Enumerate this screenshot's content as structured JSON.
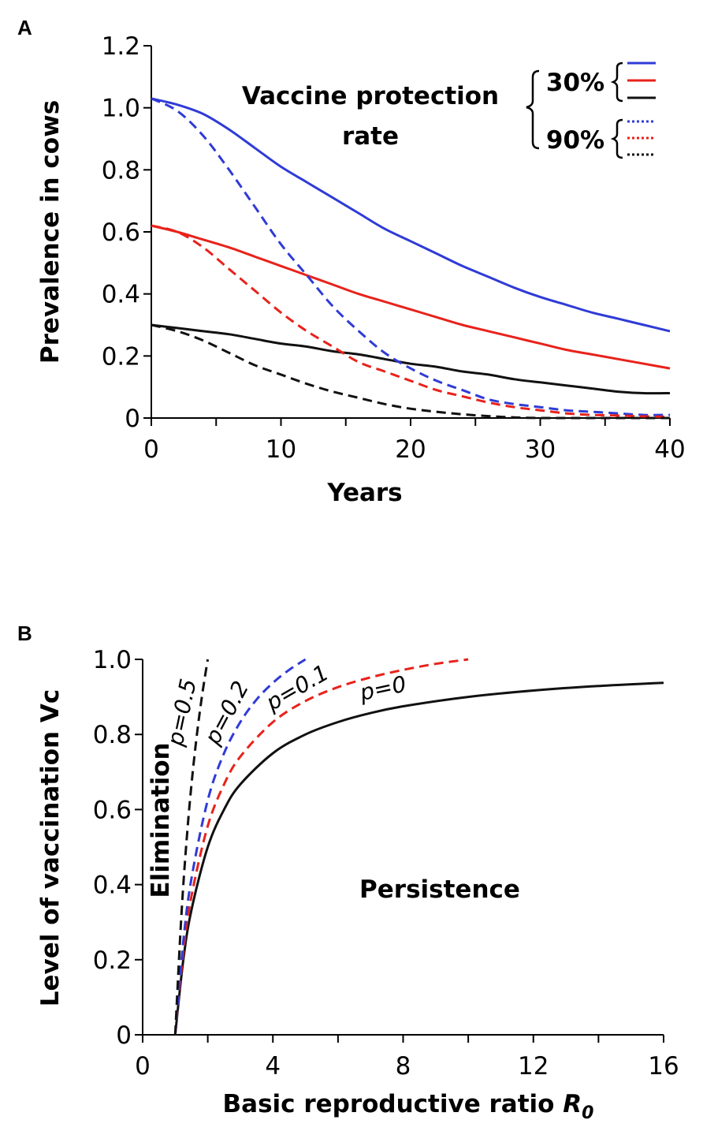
{
  "chart_data": [
    {
      "panel": "A",
      "type": "line",
      "xlabel": "Years",
      "ylabel": "Prevalence in cows",
      "xlim": [
        0,
        40
      ],
      "ylim": [
        0,
        1.2
      ],
      "x_ticks": [
        "0",
        "10",
        "20",
        "30",
        "40"
      ],
      "y_ticks": [
        "0",
        "0.2",
        "0.4",
        "0.6",
        "0.8",
        "1.0",
        "1.2"
      ],
      "x_tick_values": [
        0,
        10,
        20,
        30,
        40
      ],
      "y_tick_values": [
        0,
        0.2,
        0.4,
        0.6,
        0.8,
        1.0,
        1.2
      ],
      "annotation_line1": "Vaccine protection",
      "annotation_line2": "rate",
      "legend_groups": [
        "30%",
        "90%"
      ],
      "series": [
        {
          "name": "30% blue",
          "color": "#2f3bd6",
          "dash": "solid",
          "x": [
            0,
            2,
            4,
            6,
            8,
            10,
            12,
            14,
            16,
            18,
            20,
            22,
            24,
            26,
            28,
            30,
            32,
            34,
            36,
            38,
            40
          ],
          "y": [
            1.03,
            1.01,
            0.98,
            0.93,
            0.87,
            0.81,
            0.76,
            0.71,
            0.66,
            0.61,
            0.57,
            0.53,
            0.49,
            0.455,
            0.42,
            0.39,
            0.365,
            0.34,
            0.32,
            0.3,
            0.28
          ]
        },
        {
          "name": "30% red",
          "color": "#e8221b",
          "dash": "solid",
          "x": [
            0,
            2,
            4,
            6,
            8,
            10,
            12,
            14,
            16,
            18,
            20,
            22,
            24,
            26,
            28,
            30,
            32,
            34,
            36,
            38,
            40
          ],
          "y": [
            0.62,
            0.6,
            0.575,
            0.55,
            0.52,
            0.49,
            0.46,
            0.43,
            0.4,
            0.375,
            0.35,
            0.325,
            0.3,
            0.28,
            0.26,
            0.24,
            0.22,
            0.205,
            0.19,
            0.175,
            0.16
          ]
        },
        {
          "name": "30% black",
          "color": "#111111",
          "dash": "solid",
          "x": [
            0,
            2,
            4,
            6,
            8,
            10,
            12,
            14,
            16,
            18,
            20,
            22,
            24,
            26,
            28,
            30,
            32,
            34,
            36,
            38,
            40
          ],
          "y": [
            0.3,
            0.29,
            0.28,
            0.27,
            0.255,
            0.24,
            0.23,
            0.215,
            0.205,
            0.19,
            0.175,
            0.165,
            0.15,
            0.14,
            0.125,
            0.115,
            0.105,
            0.095,
            0.085,
            0.08,
            0.08
          ]
        },
        {
          "name": "90% blue",
          "color": "#2f3bd6",
          "dash": "dashed",
          "x": [
            0,
            2,
            4,
            6,
            8,
            10,
            12,
            14,
            16,
            18,
            20,
            22,
            24,
            26,
            28,
            30,
            32,
            34,
            36,
            38,
            40
          ],
          "y": [
            1.03,
            0.99,
            0.91,
            0.8,
            0.68,
            0.56,
            0.46,
            0.36,
            0.28,
            0.21,
            0.16,
            0.12,
            0.09,
            0.06,
            0.045,
            0.035,
            0.025,
            0.02,
            0.015,
            0.01,
            0.01
          ]
        },
        {
          "name": "90% red",
          "color": "#e8221b",
          "dash": "dashed",
          "x": [
            0,
            2,
            4,
            6,
            8,
            10,
            12,
            14,
            16,
            18,
            20,
            22,
            24,
            26,
            28,
            30,
            32,
            34,
            36,
            38,
            40
          ],
          "y": [
            0.62,
            0.6,
            0.55,
            0.48,
            0.41,
            0.34,
            0.28,
            0.23,
            0.18,
            0.15,
            0.12,
            0.09,
            0.07,
            0.05,
            0.035,
            0.025,
            0.015,
            0.01,
            0.008,
            0.005,
            0.004
          ]
        },
        {
          "name": "90% black",
          "color": "#111111",
          "dash": "dashed",
          "x": [
            0,
            2,
            4,
            6,
            8,
            10,
            12,
            14,
            16,
            18,
            20,
            22,
            24,
            26,
            28,
            30,
            32,
            34,
            36,
            38,
            40
          ],
          "y": [
            0.3,
            0.28,
            0.25,
            0.21,
            0.17,
            0.14,
            0.11,
            0.085,
            0.065,
            0.045,
            0.03,
            0.02,
            0.012,
            0.006,
            0.002,
            0.0,
            0.0,
            0.0,
            0.0,
            0.0,
            0.0
          ]
        }
      ]
    },
    {
      "panel": "B",
      "type": "line",
      "xlabel": "Basic reproductive ratio",
      "xlabel_symbol": "R",
      "xlabel_subscript": "0",
      "ylabel": "Level of vaccination Vc",
      "xlim": [
        0,
        16
      ],
      "ylim": [
        0,
        1.0
      ],
      "x_ticks": [
        "0",
        "4",
        "8",
        "12",
        "16"
      ],
      "y_ticks": [
        "0",
        "0.2",
        "0.4",
        "0.6",
        "0.8",
        "1.0"
      ],
      "x_tick_values": [
        0,
        4,
        8,
        12,
        16
      ],
      "y_tick_values": [
        0,
        0.2,
        0.4,
        0.6,
        0.8,
        1.0
      ],
      "region_labels": {
        "left": "Elimination",
        "right": "Persistence"
      },
      "series": [
        {
          "name": "p=0",
          "label": "p=0",
          "color": "#111111",
          "dash": "solid",
          "x": [
            1,
            1.25,
            1.5,
            2,
            2.5,
            3,
            4,
            5,
            6,
            7,
            8,
            10,
            12,
            14,
            16
          ],
          "y": [
            0,
            0.2,
            0.333,
            0.5,
            0.6,
            0.667,
            0.75,
            0.8,
            0.833,
            0.857,
            0.875,
            0.9,
            0.917,
            0.929,
            0.9375
          ]
        },
        {
          "name": "p=0.1",
          "label": "p=0.1",
          "color": "#e8221b",
          "dash": "dashed",
          "x": [
            1,
            1.25,
            1.5,
            2,
            2.5,
            3,
            4,
            5,
            6,
            7,
            8,
            9,
            10
          ],
          "y": [
            0,
            0.222,
            0.37,
            0.556,
            0.667,
            0.741,
            0.833,
            0.889,
            0.926,
            0.952,
            0.972,
            0.988,
            1.0
          ]
        },
        {
          "name": "p=0.2",
          "label": "p=0.2",
          "color": "#2f3bd6",
          "dash": "dashed",
          "x": [
            1,
            1.25,
            1.5,
            2,
            2.5,
            3,
            3.5,
            4,
            4.5,
            5
          ],
          "y": [
            0,
            0.25,
            0.417,
            0.625,
            0.75,
            0.833,
            0.893,
            0.9375,
            0.972,
            1.0
          ]
        },
        {
          "name": "p=0.5",
          "label": "p=0.5",
          "color": "#111111",
          "dash": "dashed",
          "x": [
            1,
            1.2,
            1.4,
            1.6,
            1.8,
            2
          ],
          "y": [
            0,
            0.333,
            0.571,
            0.75,
            0.889,
            1.0
          ]
        }
      ]
    }
  ]
}
